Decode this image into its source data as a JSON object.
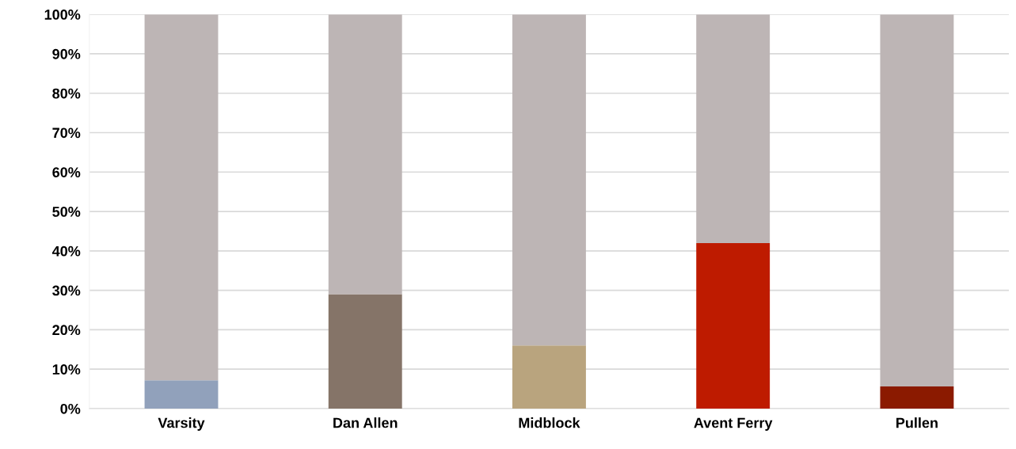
{
  "chart_data": {
    "type": "bar",
    "stacked": true,
    "categories": [
      "Varsity",
      "Dan Allen",
      "Midblock",
      "Avent Ferry",
      "Pullen"
    ],
    "series": [
      {
        "colors": [
          "#91a1bb",
          "#857468",
          "#b9a47e",
          "#be1b00",
          "#8b1a00"
        ],
        "values": [
          7.2,
          29,
          16,
          42,
          5.6
        ]
      },
      {
        "color": "#bdb5b5",
        "values": [
          92.8,
          71,
          84,
          58,
          94.4
        ]
      }
    ],
    "ylim": [
      0,
      100
    ],
    "yticks": [
      {
        "value": 0,
        "label": "0%"
      },
      {
        "value": 10,
        "label": "10%"
      },
      {
        "value": 20,
        "label": "20%"
      },
      {
        "value": 30,
        "label": "30%"
      },
      {
        "value": 40,
        "label": "40%"
      },
      {
        "value": 50,
        "label": "50%"
      },
      {
        "value": 60,
        "label": "60%"
      },
      {
        "value": 70,
        "label": "70%"
      },
      {
        "value": 80,
        "label": "80%"
      },
      {
        "value": 90,
        "label": "90%"
      },
      {
        "value": 100,
        "label": "100%"
      }
    ],
    "grid": "y"
  }
}
